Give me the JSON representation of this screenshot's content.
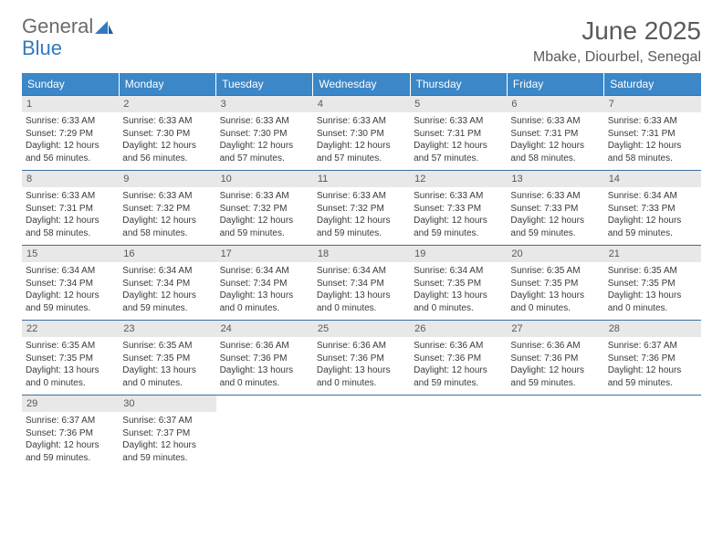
{
  "logo": {
    "general": "General",
    "blue": "Blue"
  },
  "header": {
    "title": "June 2025",
    "location": "Mbake, Diourbel, Senegal"
  },
  "colors": {
    "header_bg": "#3b87c8",
    "header_text": "#ffffff",
    "daynum_bg": "#e8e8e8",
    "week_border": "#3b6fa0",
    "logo_gray": "#6b6b6b",
    "logo_blue": "#2f7bbf",
    "title_color": "#5a5a5a",
    "body_text": "#3a3a3a",
    "page_bg": "#ffffff"
  },
  "typography": {
    "title_fontsize": 28,
    "location_fontsize": 16,
    "weekday_fontsize": 12,
    "daynum_fontsize": 11,
    "body_fontsize": 10,
    "font_family": "Arial"
  },
  "weekdays": [
    "Sunday",
    "Monday",
    "Tuesday",
    "Wednesday",
    "Thursday",
    "Friday",
    "Saturday"
  ],
  "weeks": [
    [
      {
        "n": "1",
        "sunrise": "Sunrise: 6:33 AM",
        "sunset": "Sunset: 7:29 PM",
        "day1": "Daylight: 12 hours",
        "day2": "and 56 minutes."
      },
      {
        "n": "2",
        "sunrise": "Sunrise: 6:33 AM",
        "sunset": "Sunset: 7:30 PM",
        "day1": "Daylight: 12 hours",
        "day2": "and 56 minutes."
      },
      {
        "n": "3",
        "sunrise": "Sunrise: 6:33 AM",
        "sunset": "Sunset: 7:30 PM",
        "day1": "Daylight: 12 hours",
        "day2": "and 57 minutes."
      },
      {
        "n": "4",
        "sunrise": "Sunrise: 6:33 AM",
        "sunset": "Sunset: 7:30 PM",
        "day1": "Daylight: 12 hours",
        "day2": "and 57 minutes."
      },
      {
        "n": "5",
        "sunrise": "Sunrise: 6:33 AM",
        "sunset": "Sunset: 7:31 PM",
        "day1": "Daylight: 12 hours",
        "day2": "and 57 minutes."
      },
      {
        "n": "6",
        "sunrise": "Sunrise: 6:33 AM",
        "sunset": "Sunset: 7:31 PM",
        "day1": "Daylight: 12 hours",
        "day2": "and 58 minutes."
      },
      {
        "n": "7",
        "sunrise": "Sunrise: 6:33 AM",
        "sunset": "Sunset: 7:31 PM",
        "day1": "Daylight: 12 hours",
        "day2": "and 58 minutes."
      }
    ],
    [
      {
        "n": "8",
        "sunrise": "Sunrise: 6:33 AM",
        "sunset": "Sunset: 7:31 PM",
        "day1": "Daylight: 12 hours",
        "day2": "and 58 minutes."
      },
      {
        "n": "9",
        "sunrise": "Sunrise: 6:33 AM",
        "sunset": "Sunset: 7:32 PM",
        "day1": "Daylight: 12 hours",
        "day2": "and 58 minutes."
      },
      {
        "n": "10",
        "sunrise": "Sunrise: 6:33 AM",
        "sunset": "Sunset: 7:32 PM",
        "day1": "Daylight: 12 hours",
        "day2": "and 59 minutes."
      },
      {
        "n": "11",
        "sunrise": "Sunrise: 6:33 AM",
        "sunset": "Sunset: 7:32 PM",
        "day1": "Daylight: 12 hours",
        "day2": "and 59 minutes."
      },
      {
        "n": "12",
        "sunrise": "Sunrise: 6:33 AM",
        "sunset": "Sunset: 7:33 PM",
        "day1": "Daylight: 12 hours",
        "day2": "and 59 minutes."
      },
      {
        "n": "13",
        "sunrise": "Sunrise: 6:33 AM",
        "sunset": "Sunset: 7:33 PM",
        "day1": "Daylight: 12 hours",
        "day2": "and 59 minutes."
      },
      {
        "n": "14",
        "sunrise": "Sunrise: 6:34 AM",
        "sunset": "Sunset: 7:33 PM",
        "day1": "Daylight: 12 hours",
        "day2": "and 59 minutes."
      }
    ],
    [
      {
        "n": "15",
        "sunrise": "Sunrise: 6:34 AM",
        "sunset": "Sunset: 7:34 PM",
        "day1": "Daylight: 12 hours",
        "day2": "and 59 minutes."
      },
      {
        "n": "16",
        "sunrise": "Sunrise: 6:34 AM",
        "sunset": "Sunset: 7:34 PM",
        "day1": "Daylight: 12 hours",
        "day2": "and 59 minutes."
      },
      {
        "n": "17",
        "sunrise": "Sunrise: 6:34 AM",
        "sunset": "Sunset: 7:34 PM",
        "day1": "Daylight: 13 hours",
        "day2": "and 0 minutes."
      },
      {
        "n": "18",
        "sunrise": "Sunrise: 6:34 AM",
        "sunset": "Sunset: 7:34 PM",
        "day1": "Daylight: 13 hours",
        "day2": "and 0 minutes."
      },
      {
        "n": "19",
        "sunrise": "Sunrise: 6:34 AM",
        "sunset": "Sunset: 7:35 PM",
        "day1": "Daylight: 13 hours",
        "day2": "and 0 minutes."
      },
      {
        "n": "20",
        "sunrise": "Sunrise: 6:35 AM",
        "sunset": "Sunset: 7:35 PM",
        "day1": "Daylight: 13 hours",
        "day2": "and 0 minutes."
      },
      {
        "n": "21",
        "sunrise": "Sunrise: 6:35 AM",
        "sunset": "Sunset: 7:35 PM",
        "day1": "Daylight: 13 hours",
        "day2": "and 0 minutes."
      }
    ],
    [
      {
        "n": "22",
        "sunrise": "Sunrise: 6:35 AM",
        "sunset": "Sunset: 7:35 PM",
        "day1": "Daylight: 13 hours",
        "day2": "and 0 minutes."
      },
      {
        "n": "23",
        "sunrise": "Sunrise: 6:35 AM",
        "sunset": "Sunset: 7:35 PM",
        "day1": "Daylight: 13 hours",
        "day2": "and 0 minutes."
      },
      {
        "n": "24",
        "sunrise": "Sunrise: 6:36 AM",
        "sunset": "Sunset: 7:36 PM",
        "day1": "Daylight: 13 hours",
        "day2": "and 0 minutes."
      },
      {
        "n": "25",
        "sunrise": "Sunrise: 6:36 AM",
        "sunset": "Sunset: 7:36 PM",
        "day1": "Daylight: 13 hours",
        "day2": "and 0 minutes."
      },
      {
        "n": "26",
        "sunrise": "Sunrise: 6:36 AM",
        "sunset": "Sunset: 7:36 PM",
        "day1": "Daylight: 12 hours",
        "day2": "and 59 minutes."
      },
      {
        "n": "27",
        "sunrise": "Sunrise: 6:36 AM",
        "sunset": "Sunset: 7:36 PM",
        "day1": "Daylight: 12 hours",
        "day2": "and 59 minutes."
      },
      {
        "n": "28",
        "sunrise": "Sunrise: 6:37 AM",
        "sunset": "Sunset: 7:36 PM",
        "day1": "Daylight: 12 hours",
        "day2": "and 59 minutes."
      }
    ],
    [
      {
        "n": "29",
        "sunrise": "Sunrise: 6:37 AM",
        "sunset": "Sunset: 7:36 PM",
        "day1": "Daylight: 12 hours",
        "day2": "and 59 minutes."
      },
      {
        "n": "30",
        "sunrise": "Sunrise: 6:37 AM",
        "sunset": "Sunset: 7:37 PM",
        "day1": "Daylight: 12 hours",
        "day2": "and 59 minutes."
      },
      {
        "empty": true
      },
      {
        "empty": true
      },
      {
        "empty": true
      },
      {
        "empty": true
      },
      {
        "empty": true
      }
    ]
  ]
}
